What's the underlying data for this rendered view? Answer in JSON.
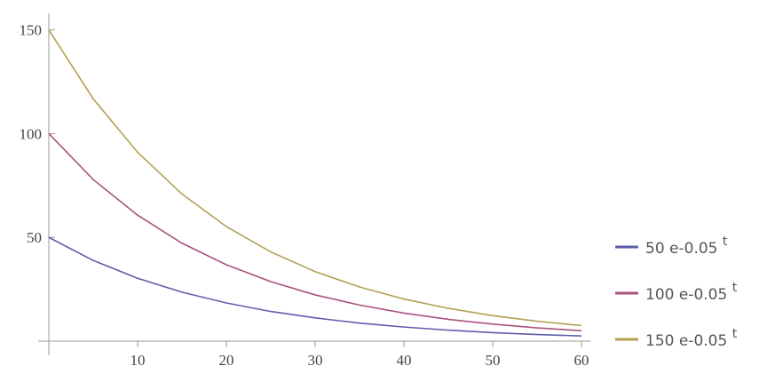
{
  "chart_data": {
    "type": "line",
    "x": [
      0,
      5,
      10,
      15,
      20,
      25,
      30,
      35,
      40,
      45,
      50,
      55,
      60
    ],
    "series": [
      {
        "name": "50 e-0.05 t",
        "color": "#5d5dab",
        "values": [
          50,
          38.9,
          30.3,
          23.6,
          18.4,
          14.3,
          11.2,
          8.7,
          6.8,
          5.3,
          4.1,
          3.2,
          2.5
        ]
      },
      {
        "name": "100 e-0.05 t",
        "color": "#a8527f",
        "values": [
          100,
          77.9,
          60.7,
          47.2,
          36.8,
          28.7,
          22.3,
          17.4,
          13.5,
          10.5,
          8.2,
          6.4,
          5.0
        ]
      },
      {
        "name": "150 e-0.05 t",
        "color": "#b3a052",
        "values": [
          150,
          116.8,
          91.0,
          70.9,
          55.2,
          43.0,
          33.5,
          26.1,
          20.3,
          15.8,
          12.3,
          9.6,
          7.5
        ]
      }
    ],
    "xlim": [
      0,
      61
    ],
    "ylim": [
      0,
      158
    ],
    "xticks": [
      10,
      20,
      30,
      40,
      50,
      60
    ],
    "yticks": [
      50,
      100,
      150
    ],
    "legend": "right"
  }
}
